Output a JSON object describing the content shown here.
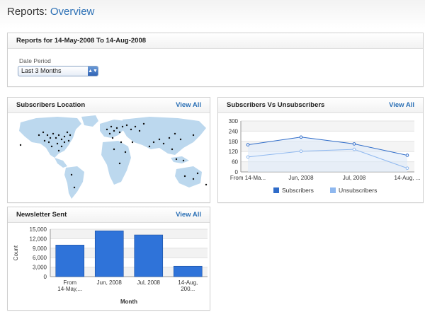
{
  "page": {
    "section": "Reports",
    "separator": ": ",
    "current": "Overview"
  },
  "period_panel": {
    "title": "Reports for 14-May-2008 To 14-Aug-2008",
    "date_label": "Date Period",
    "select_value": "Last 3 Months"
  },
  "location_panel": {
    "title": "Subscribers Location",
    "view_all": "View All"
  },
  "subs_panel": {
    "title": "Subscribers Vs Unsubscribers",
    "view_all": "View All"
  },
  "news_panel": {
    "title": "Newsletter Sent",
    "view_all": "View All"
  },
  "icons": {
    "select_arrow": "up-down-arrows-icon"
  },
  "chart_data": [
    {
      "type": "line",
      "categories": [
        "From 14-Ma...",
        "Jun, 2008",
        "Jul, 2008",
        "14-Aug, ..."
      ],
      "series": [
        {
          "name": "Subscribers",
          "values": [
            160,
            205,
            165,
            98
          ],
          "color": "#2f6cc9"
        },
        {
          "name": "Unsubscribers",
          "values": [
            88,
            122,
            133,
            22
          ],
          "color": "#8fb8ef"
        }
      ],
      "yticks": [
        0,
        60,
        120,
        180,
        240,
        300
      ],
      "ylim": [
        0,
        300
      ],
      "grid": true,
      "legend": "bottom"
    },
    {
      "type": "bar",
      "categories": [
        "From 14-May,...",
        "Jun, 2008",
        "Jul, 2008",
        "14-Aug, 200..."
      ],
      "values": [
        10000,
        14500,
        13200,
        3300
      ],
      "color": "#2f73d9",
      "yticks": [
        "0",
        "3,000",
        "6,000",
        "9,000",
        "12,000",
        "15,000"
      ],
      "ylim": [
        0,
        15000
      ],
      "xlabel": "Month",
      "ylabel": "Count",
      "grid": true
    }
  ]
}
